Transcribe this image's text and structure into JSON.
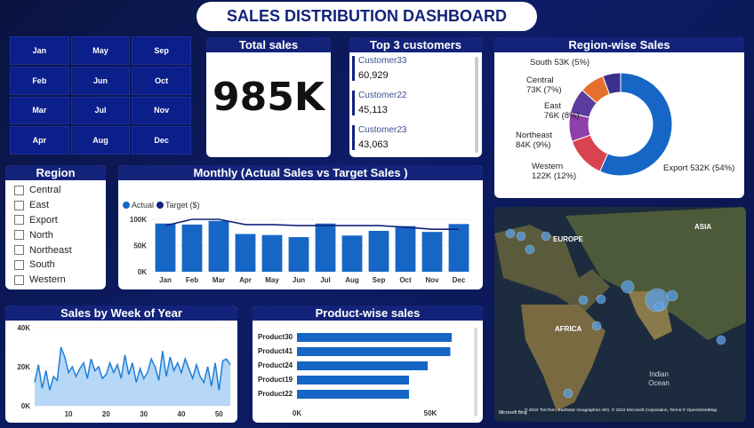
{
  "title": "SALES DISTRIBUTION DASHBOARD",
  "months": [
    "Jan",
    "May",
    "Sep",
    "Feb",
    "Jun",
    "Oct",
    "Mar",
    "Jul",
    "Nov",
    "Apr",
    "Aug",
    "Dec"
  ],
  "total_sales": {
    "title": "Total sales",
    "value": "985K"
  },
  "top_customers": {
    "title": "Top 3 customers",
    "items": [
      {
        "name": "Customer33",
        "value": "60,929"
      },
      {
        "name": "Customer22",
        "value": "45,113"
      },
      {
        "name": "Customer23",
        "value": "43,063"
      }
    ]
  },
  "region_filter": {
    "title": "Region",
    "items": [
      "Central",
      "East",
      "Export",
      "North",
      "Northeast",
      "South",
      "Western"
    ]
  },
  "map": {
    "labels": [
      "EUROPE",
      "ASIA",
      "AFRICA",
      "Indian\nOcean"
    ],
    "attribution": "© 2022 TomTom, Earthstar Geographics SIO, © 2022 Microsoft Corporation, Terms © OpenStreetMap",
    "brand": "Microsoft Bing"
  },
  "chart_data": [
    {
      "type": "pie",
      "title": "Region-wise Sales",
      "labels": [
        "Export",
        "Western",
        "Northeast",
        "East",
        "Central",
        "South"
      ],
      "values": [
        532,
        122,
        84,
        76,
        73,
        53
      ],
      "percents": [
        54,
        12,
        9,
        8,
        7,
        5
      ],
      "label_text": [
        "Export 532K (54%)",
        "Western\n122K (12%)",
        "Northeast\n84K (9%)",
        "East\n76K (8%)",
        "Central\n73K (7%)",
        "South 53K (5%)"
      ],
      "colors": [
        "#1666c5",
        "#d9434f",
        "#8e3fa8",
        "#5a3b9e",
        "#e5702c",
        "#3a2f8a"
      ]
    },
    {
      "type": "bar",
      "title": "Monthly (Actual Sales vs Target Sales )",
      "legend": [
        "Actual",
        "Target ($)"
      ],
      "categories": [
        "Jan",
        "Feb",
        "Mar",
        "Apr",
        "May",
        "Jun",
        "Jul",
        "Aug",
        "Sep",
        "Oct",
        "Nov",
        "Dec"
      ],
      "series": [
        {
          "name": "Actual",
          "values": [
            92,
            90,
            97,
            72,
            70,
            66,
            92,
            69,
            78,
            87,
            76,
            91
          ]
        },
        {
          "name": "Target ($)",
          "values": [
            88,
            100,
            100,
            90,
            90,
            88,
            88,
            88,
            88,
            85,
            81,
            81
          ]
        }
      ],
      "ylim": [
        0,
        100
      ],
      "yticks": [
        "0K",
        "50K",
        "100K"
      ],
      "colors": [
        "#1666c5",
        "#13237a"
      ]
    },
    {
      "type": "area",
      "title": "Sales by Week of Year",
      "x": [
        1,
        2,
        3,
        4,
        5,
        6,
        7,
        8,
        9,
        10,
        11,
        12,
        13,
        14,
        15,
        16,
        17,
        18,
        19,
        20,
        21,
        22,
        23,
        24,
        25,
        26,
        27,
        28,
        29,
        30,
        31,
        32,
        33,
        34,
        35,
        36,
        37,
        38,
        39,
        40,
        41,
        42,
        43,
        44,
        45,
        46,
        47,
        48,
        49,
        50,
        51,
        52,
        53
      ],
      "values": [
        12,
        21,
        9,
        18,
        8,
        15,
        13,
        30,
        25,
        17,
        20,
        15,
        19,
        22,
        14,
        24,
        18,
        20,
        14,
        16,
        22,
        17,
        21,
        14,
        26,
        16,
        22,
        12,
        19,
        14,
        17,
        24,
        20,
        13,
        28,
        15,
        25,
        18,
        22,
        17,
        24,
        19,
        14,
        21,
        15,
        12,
        20,
        10,
        22,
        8,
        23,
        24,
        21
      ],
      "ylim": [
        0,
        40
      ],
      "yticks": [
        "0K",
        "20K",
        "40K"
      ],
      "xticks": [
        10,
        20,
        30,
        40,
        50
      ],
      "color": "#1f7fd8"
    },
    {
      "type": "bar",
      "title": "Product-wise sales",
      "categories": [
        "Product30",
        "Product41",
        "Product24",
        "Product19",
        "Product22"
      ],
      "values": [
        58,
        57.5,
        49,
        42,
        42
      ],
      "xlim": [
        0,
        60
      ],
      "xticks": [
        "0K",
        "50K"
      ],
      "color": "#1666c5"
    }
  ]
}
